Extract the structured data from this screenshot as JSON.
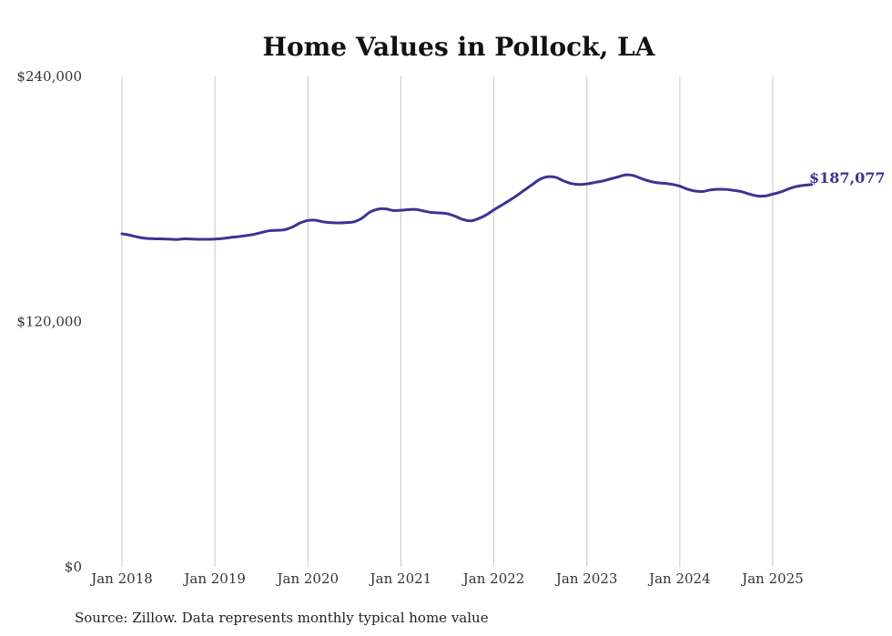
{
  "chart_data": {
    "type": "line",
    "title": "Home Values in Pollock, LA",
    "xlabel": "",
    "ylabel": "",
    "ylim": [
      0,
      240000
    ],
    "x_tick_labels": [
      "Jan 2018",
      "Jan 2019",
      "Jan 2020",
      "Jan 2021",
      "Jan 2022",
      "Jan 2023",
      "Jan 2024",
      "Jan 2025"
    ],
    "y_tick_labels": [
      "$0",
      "$120,000",
      "$240,000"
    ],
    "y_ticks": [
      0,
      120000,
      240000
    ],
    "grid": "vertical",
    "line_color": "#3b3494",
    "end_label": "$187,077",
    "source": "Source: Zillow. Data represents monthly typical home value",
    "series": [
      {
        "values": [
          163000,
          162300,
          161400,
          160800,
          160600,
          160500,
          160400,
          160200,
          160500,
          160400,
          160300,
          160300,
          160400,
          160700,
          161200,
          161600,
          162100,
          162700,
          163600,
          164500,
          164700,
          165000,
          166300,
          168300,
          169500,
          169600,
          168800,
          168400,
          168300,
          168500,
          168900,
          170700,
          173600,
          175000,
          175200,
          174400,
          174500,
          174800,
          174900,
          174100,
          173400,
          173200,
          172800,
          171600,
          170000,
          169300,
          170400,
          172200,
          174700,
          177000,
          179300,
          181800,
          184500,
          187200,
          189800,
          190900,
          190600,
          188900,
          187600,
          187100,
          187400,
          188100,
          188800,
          189800,
          190800,
          191800,
          191500,
          190100,
          188800,
          188000,
          187700,
          187200,
          186300,
          184800,
          183900,
          183700,
          184500,
          184800,
          184700,
          184200,
          183600,
          182400,
          181500,
          181500,
          182400,
          183400,
          184900,
          186100,
          186700,
          187077
        ]
      }
    ]
  }
}
